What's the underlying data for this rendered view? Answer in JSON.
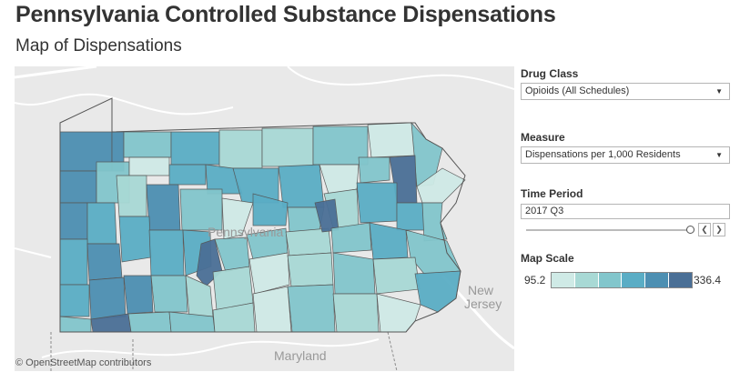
{
  "header": {
    "title": "Pennsylvania Controlled Substance Dispensations",
    "subtitle": "Map of Dispensations"
  },
  "map": {
    "attribution": "© OpenStreetMap contributors",
    "labels": {
      "state": "Pennsylvania",
      "maryland": "Maryland",
      "nj_line1": "New",
      "nj_line2": "Jersey"
    },
    "colors": {
      "background": "#e9e9e9",
      "road": "#ffffff",
      "border": "#8c8c8c",
      "county_line": "#555555"
    },
    "county_levels": [
      1,
      2,
      3,
      4,
      5,
      6
    ]
  },
  "filters": {
    "drug_class": {
      "label": "Drug Class",
      "value": "Opioids (All Schedules)"
    },
    "measure": {
      "label": "Measure",
      "value": "Dispensations per 1,000 Residents"
    },
    "time_period": {
      "label": "Time Period",
      "value": "2017 Q3",
      "prev_icon": "chevron-left-icon",
      "next_icon": "chevron-right-icon"
    }
  },
  "legend": {
    "label": "Map Scale",
    "min": "95.2",
    "max": "336.4",
    "colors": [
      "#cfeae6",
      "#a8d9d5",
      "#82c6cc",
      "#5aadc5",
      "#4d8fb2",
      "#4a6f96"
    ]
  }
}
